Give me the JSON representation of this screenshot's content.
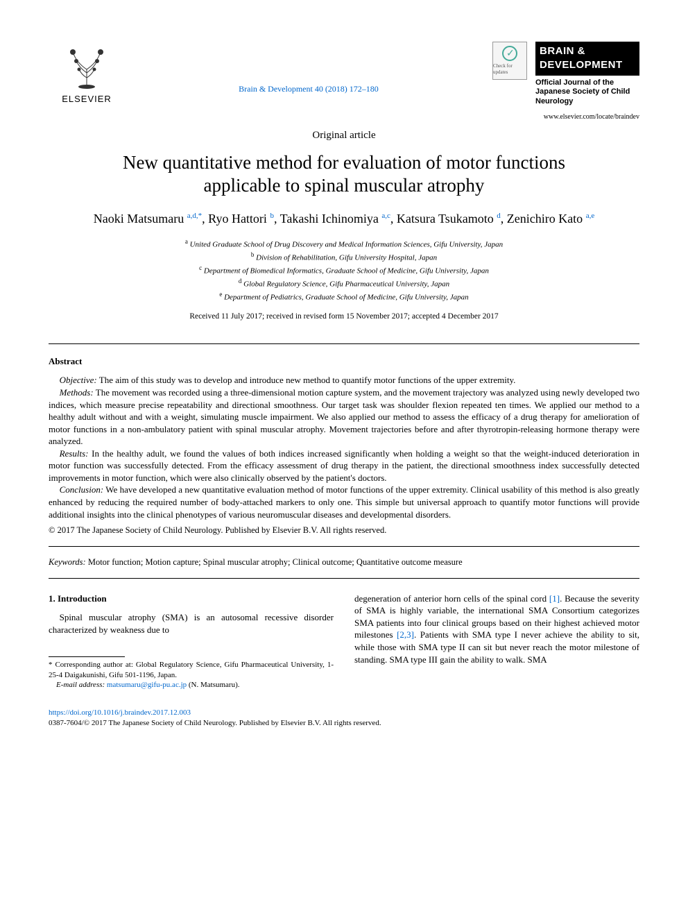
{
  "header": {
    "publisher_label": "ELSEVIER",
    "journal_ref": "Brain & Development 40 (2018) 172–180",
    "crossmark_label": "Check for updates",
    "badge_line1": "BRAIN &",
    "badge_line2": "DEVELOPMENT",
    "badge_sub": "Official Journal of the Japanese Society of Child Neurology",
    "journal_url": "www.elsevier.com/locate/braindev"
  },
  "article_type": "Original article",
  "title": "New quantitative method for evaluation of motor functions applicable to spinal muscular atrophy",
  "authors_html": "Naoki Matsumaru <sup>a,d,*</sup>, Ryo Hattori <sup>b</sup>, Takashi Ichinomiya <sup>a,c</sup>, Katsura Tsukamoto <sup>d</sup>, Zenichiro Kato <sup>a,e</sup>",
  "affiliations": {
    "a": "United Graduate School of Drug Discovery and Medical Information Sciences, Gifu University, Japan",
    "b": "Division of Rehabilitation, Gifu University Hospital, Japan",
    "c": "Department of Biomedical Informatics, Graduate School of Medicine, Gifu University, Japan",
    "d": "Global Regulatory Science, Gifu Pharmaceutical University, Japan",
    "e": "Department of Pediatrics, Graduate School of Medicine, Gifu University, Japan"
  },
  "dates": "Received 11 July 2017; received in revised form 15 November 2017; accepted 4 December 2017",
  "abstract": {
    "heading": "Abstract",
    "objective_label": "Objective:",
    "objective": "The aim of this study was to develop and introduce new method to quantify motor functions of the upper extremity.",
    "methods_label": "Methods:",
    "methods": "The movement was recorded using a three-dimensional motion capture system, and the movement trajectory was analyzed using newly developed two indices, which measure precise repeatability and directional smoothness. Our target task was shoulder flexion repeated ten times. We applied our method to a healthy adult without and with a weight, simulating muscle impairment. We also applied our method to assess the efficacy of a drug therapy for amelioration of motor functions in a non-ambulatory patient with spinal muscular atrophy. Movement trajectories before and after thyrotropin-releasing hormone therapy were analyzed.",
    "results_label": "Results:",
    "results": "In the healthy adult, we found the values of both indices increased significantly when holding a weight so that the weight-induced deterioration in motor function was successfully detected. From the efficacy assessment of drug therapy in the patient, the directional smoothness index successfully detected improvements in motor function, which were also clinically observed by the patient's doctors.",
    "conclusion_label": "Conclusion:",
    "conclusion": "We have developed a new quantitative evaluation method of motor functions of the upper extremity. Clinical usability of this method is also greatly enhanced by reducing the required number of body-attached markers to only one. This simple but universal approach to quantify motor functions will provide additional insights into the clinical phenotypes of various neuromuscular diseases and developmental disorders."
  },
  "copyright": "© 2017 The Japanese Society of Child Neurology. Published by Elsevier B.V. All rights reserved.",
  "keywords_label": "Keywords:",
  "keywords": "Motor function; Motion capture; Spinal muscular atrophy; Clinical outcome; Quantitative outcome measure",
  "section1": {
    "heading": "1. Introduction",
    "col1": "Spinal muscular atrophy (SMA) is an autosomal recessive disorder characterized by weakness due to",
    "col2_a": "degeneration of anterior horn cells of the spinal cord ",
    "ref1": "[1]",
    "col2_b": ". Because the severity of SMA is highly variable, the international SMA Consortium categorizes SMA patients into four clinical groups based on their highest achieved motor milestones ",
    "ref23": "[2,3]",
    "col2_c": ". Patients with SMA type I never achieve the ability to sit, while those with SMA type II can sit but never reach the motor milestone of standing. SMA type III gain the ability to walk. SMA"
  },
  "footnote": {
    "corr": "* Corresponding author at: Global Regulatory Science, Gifu Pharmaceutical University, 1-25-4 Daigakunishi, Gifu 501-1196, Japan.",
    "email_label": "E-mail address:",
    "email": "matsumaru@gifu-pu.ac.jp",
    "email_paren": "(N. Matsumaru)."
  },
  "footer": {
    "doi": "https://doi.org/10.1016/j.braindev.2017.12.003",
    "line": "0387-7604/© 2017 The Japanese Society of Child Neurology. Published by Elsevier B.V. All rights reserved."
  },
  "style": {
    "link_color": "#0066cc",
    "badge_bg": "#000000",
    "badge_fg": "#ffffff",
    "body_font": "Times New Roman",
    "title_fontsize": 27,
    "author_fontsize": 18,
    "body_fontsize": 13,
    "affil_fontsize": 11
  }
}
